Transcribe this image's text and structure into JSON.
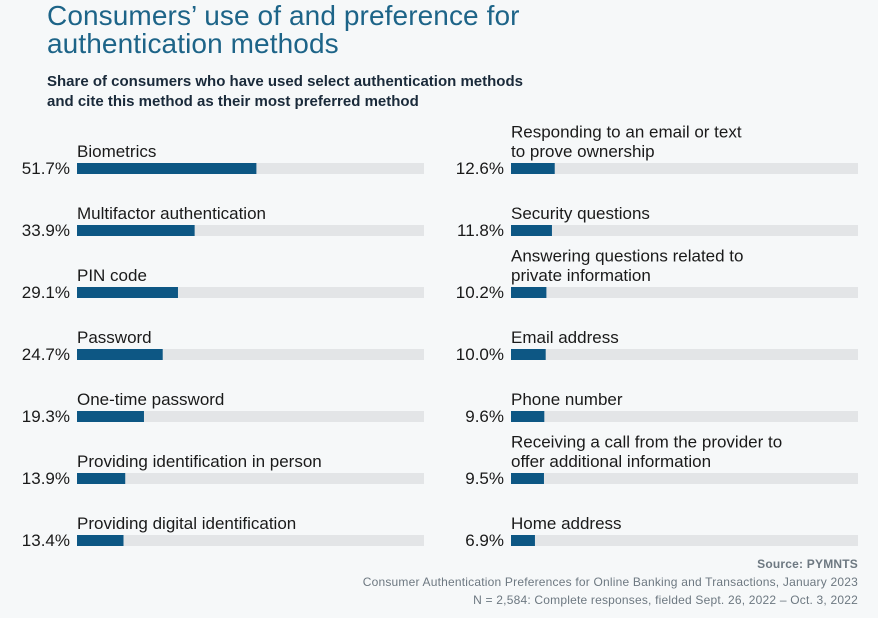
{
  "header": {
    "title_line1": "Consumers’ use of and preference for",
    "title_line2": "authentication methods",
    "subtitle_line1": "Share of consumers who have used select authentication methods",
    "subtitle_line2": "and cite this method as their most preferred method"
  },
  "chart_data": {
    "type": "bar",
    "orientation": "horizontal",
    "value_suffix": "%",
    "xlim": [
      0,
      100
    ],
    "colors": {
      "bar": "#0d5784",
      "track": "#e3e5e7",
      "value_text": "#1a1a1a",
      "label_text": "#1a1a1a"
    },
    "columns": [
      {
        "items": [
          {
            "label": [
              "Biometrics"
            ],
            "value": 51.7
          },
          {
            "label": [
              "Multifactor authentication"
            ],
            "value": 33.9
          },
          {
            "label": [
              "PIN code"
            ],
            "value": 29.1
          },
          {
            "label": [
              "Password"
            ],
            "value": 24.7
          },
          {
            "label": [
              "One-time password"
            ],
            "value": 19.3
          },
          {
            "label": [
              "Providing identification in person"
            ],
            "value": 13.9
          },
          {
            "label": [
              "Providing digital identification"
            ],
            "value": 13.4
          }
        ]
      },
      {
        "items": [
          {
            "label": [
              "Responding to an email or text",
              "to prove ownership"
            ],
            "value": 12.6
          },
          {
            "label": [
              "Security questions"
            ],
            "value": 11.8
          },
          {
            "label": [
              "Answering questions related to",
              "private information"
            ],
            "value": 10.2
          },
          {
            "label": [
              "Email address"
            ],
            "value": 10.0
          },
          {
            "label": [
              "Phone number"
            ],
            "value": 9.6
          },
          {
            "label": [
              "Receiving a call from the provider to",
              "offer additional information"
            ],
            "value": 9.5
          },
          {
            "label": [
              "Home address"
            ],
            "value": 6.9
          }
        ]
      }
    ]
  },
  "footer": {
    "source": "Source: PYMNTS",
    "line2": "Consumer Authentication Preferences for Online Banking and Transactions, January 2023",
    "line3": "N = 2,584: Complete responses, fielded Sept. 26, 2022 – Oct. 3, 2022"
  }
}
